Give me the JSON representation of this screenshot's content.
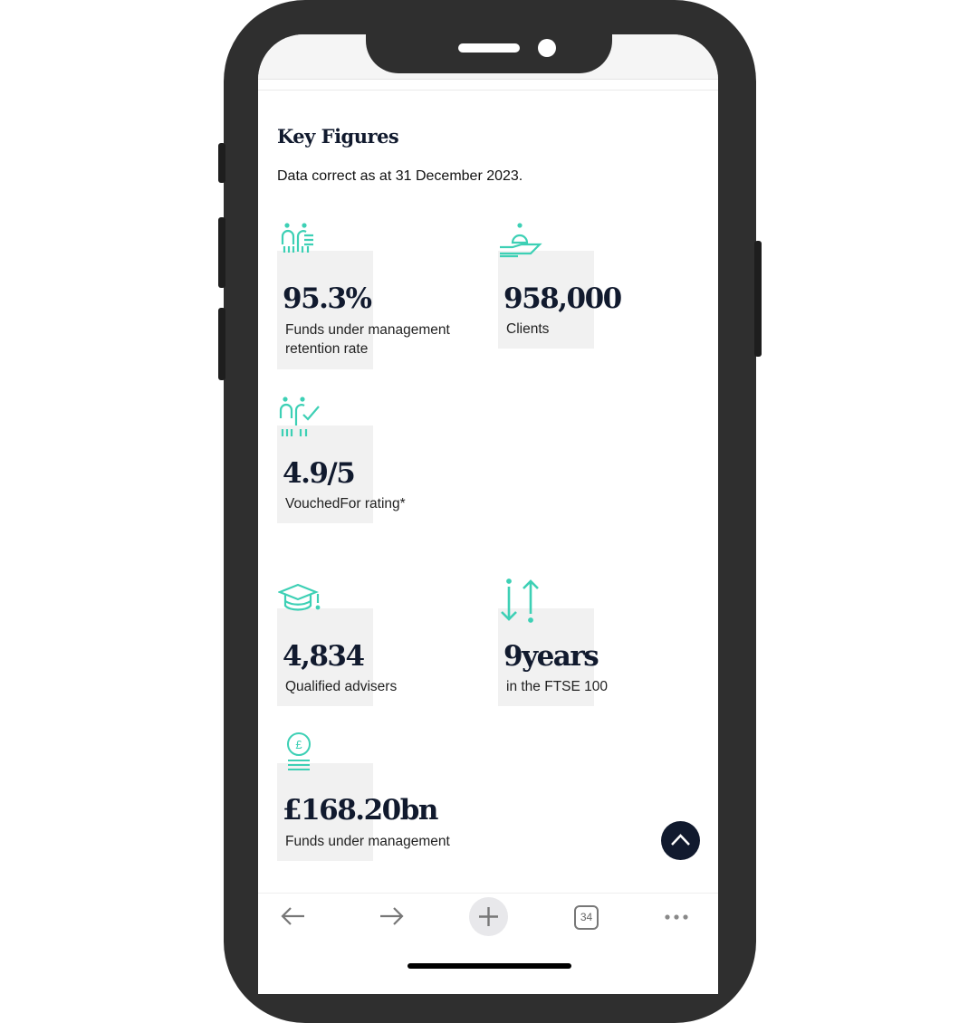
{
  "section": {
    "title": "Key Figures",
    "subtitle": "Data correct as at 31 December 2023."
  },
  "figures": [
    {
      "value": "95.3%",
      "label_lines": [
        "Funds under management",
        "retention rate"
      ],
      "icon": "people-document-icon"
    },
    {
      "value": "958,000",
      "label_lines": [
        "Clients"
      ],
      "icon": "hand-service-bell-icon"
    },
    {
      "value": "4.9/5",
      "label_lines": [
        "VouchedFor rating*"
      ],
      "icon": "people-check-icon"
    },
    {
      "value": "4,834",
      "label_lines": [
        "Qualified advisers"
      ],
      "icon": "graduation-cap-icon"
    },
    {
      "value": "9years",
      "label_lines": [
        "in the FTSE 100"
      ],
      "icon": "up-down-arrows-icon"
    },
    {
      "value": "£168.20bn",
      "label_lines": [
        "Funds under management"
      ],
      "icon": "pound-coin-stack-icon"
    }
  ],
  "browser": {
    "tab_count": "34"
  },
  "colors": {
    "accent": "#3dd0b5",
    "navy": "#111a2e",
    "card": "#f1f1f1"
  }
}
